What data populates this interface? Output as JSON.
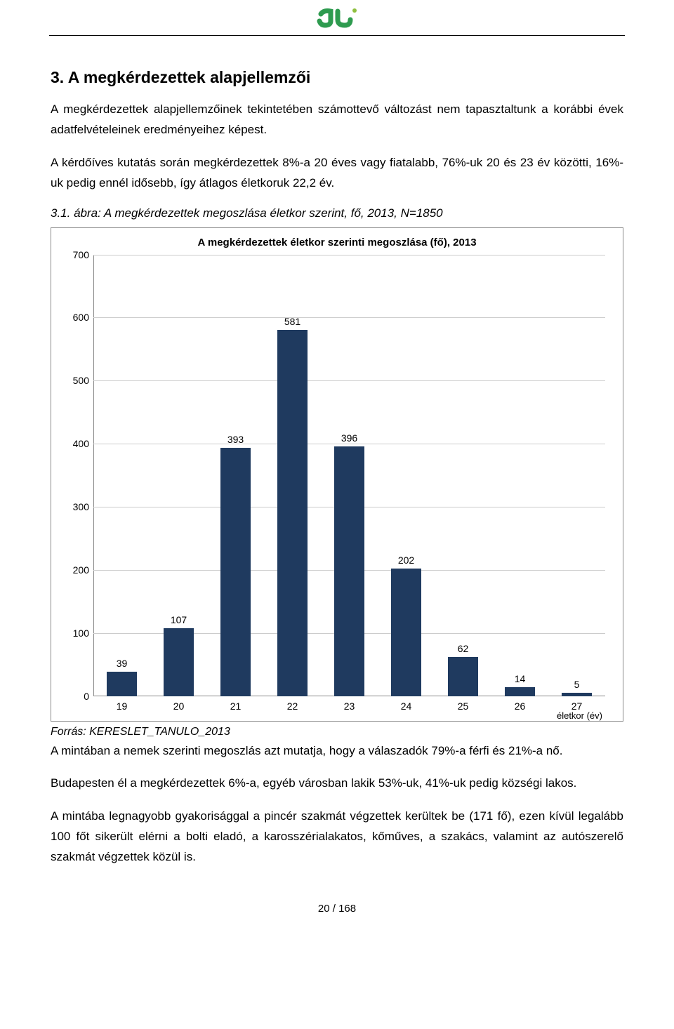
{
  "heading": "3. A megkérdezettek alapjellemzői",
  "paragraphs": {
    "p1": "A megkérdezettek alapjellemzőinek tekintetében számottevő változást nem tapasztaltunk a korábbi évek adatfelvételeinek eredményeihez képest.",
    "p2": "A kérdőíves kutatás során megkérdezettek 8%-a 20 éves vagy fiatalabb, 76%-uk 20 és 23 év közötti, 16%-uk pedig ennél idősebb, így átlagos életkoruk 22,2 év.",
    "p3": "A mintában a nemek szerinti megoszlás azt mutatja, hogy a válaszadók 79%-a férfi és 21%-a nő.",
    "p4": "Budapesten él a megkérdezettek 6%-a, egyéb városban lakik 53%-uk, 41%-uk pedig községi lakos.",
    "p5": "A mintába legnagyobb gyakorisággal a pincér szakmát végzettek kerültek be (171 fő), ezen kívül legalább 100 főt sikerült elérni a bolti eladó, a karosszérialakatos, kőműves, a szakács, valamint az autószerelő szakmát végzettek közül is."
  },
  "figure_caption": "3.1. ábra: A megkérdezettek megoszlása életkor szerint, fő, 2013, N=1850",
  "chart": {
    "type": "bar",
    "title": "A megkérdezettek életkor szerinti megoszlása (fő), 2013",
    "categories": [
      "19",
      "20",
      "21",
      "22",
      "23",
      "24",
      "25",
      "26",
      "27"
    ],
    "values": [
      39,
      107,
      393,
      581,
      396,
      202,
      62,
      14,
      5
    ],
    "bar_color": "#1f3a5f",
    "grid_color": "#cccccc",
    "background_color": "#ffffff",
    "ylim": [
      0,
      700
    ],
    "yticks": [
      0,
      100,
      200,
      300,
      400,
      500,
      600,
      700
    ],
    "bar_width": 0.52,
    "xaxis_label": "életkor (év)",
    "label_fontsize": 14,
    "title_fontsize": 15
  },
  "source": "Forrás: KERESLET_TANULO_2013",
  "page_number": "20 / 168",
  "logo_colors": {
    "primary": "#2e9b4f",
    "dot": "#8fbf3f"
  }
}
